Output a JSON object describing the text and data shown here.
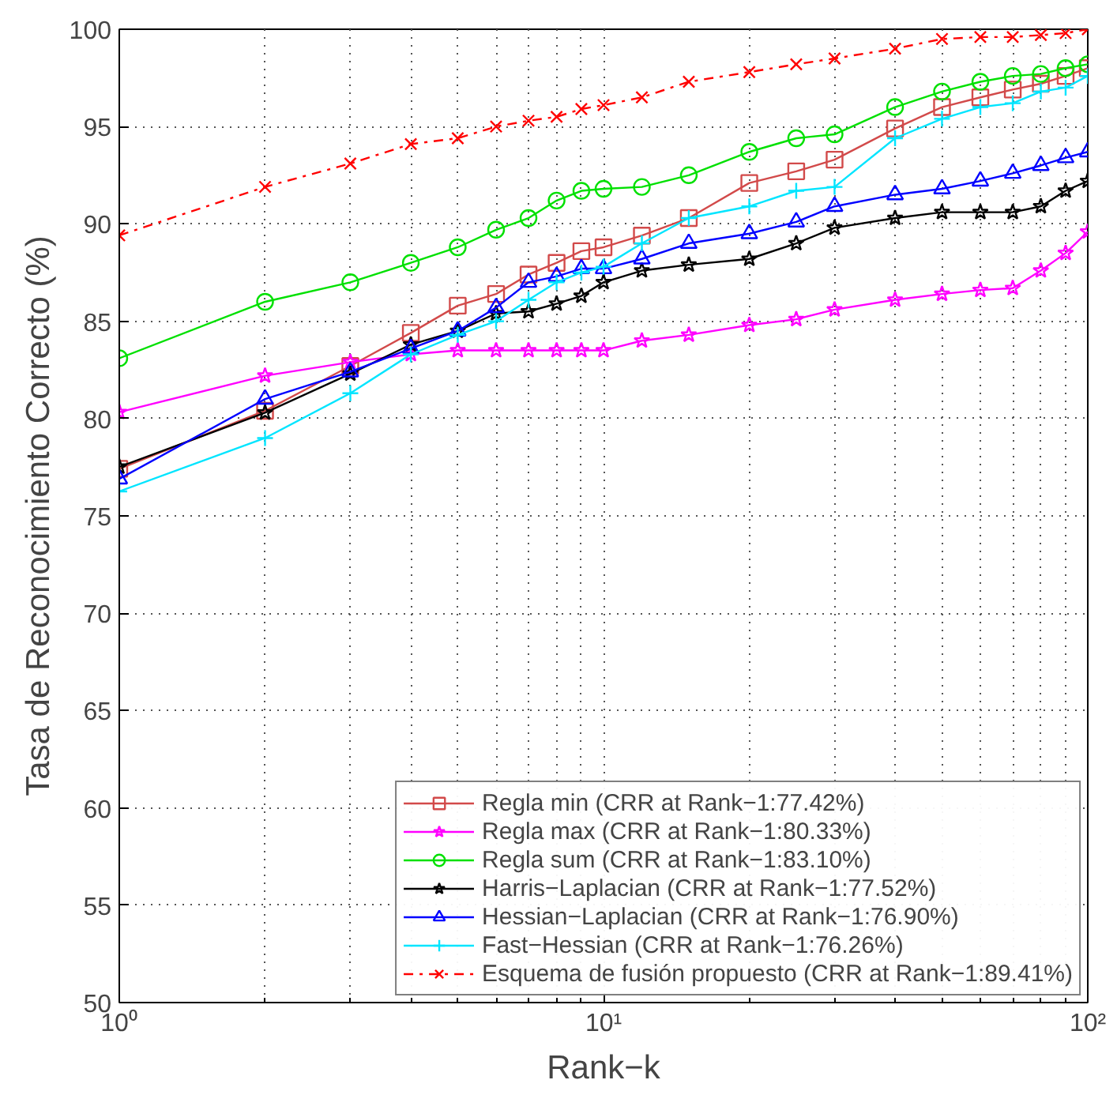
{
  "chart_data": {
    "type": "line",
    "xlabel": "Rank−k",
    "ylabel": "Tasa de Reconocimiento Correcto (%)",
    "log": "x",
    "x": [
      1,
      2,
      3,
      4,
      5,
      6,
      7,
      8,
      9,
      10,
      12,
      15,
      20,
      25,
      30,
      40,
      50,
      60,
      70,
      80,
      90,
      100
    ],
    "xlim": [
      1,
      100
    ],
    "xticks": [
      {
        "value": 1,
        "label": "10⁰"
      },
      {
        "value": 10,
        "label": "10¹"
      },
      {
        "value": 100,
        "label": "10²"
      }
    ],
    "ylim": [
      50,
      100
    ],
    "yticks": [
      50,
      55,
      60,
      65,
      70,
      75,
      80,
      85,
      90,
      95,
      100
    ],
    "grid": true,
    "legend": "bottom right",
    "series": [
      {
        "name": "Regla min (CRR at Rank−1:77.42%)",
        "color": "#d24a4a",
        "marker": "square",
        "line_style": "solid",
        "values": [
          77.42,
          80.4,
          82.7,
          84.4,
          85.8,
          86.4,
          87.4,
          88.0,
          88.6,
          88.8,
          89.4,
          90.3,
          92.1,
          92.7,
          93.3,
          94.9,
          96.0,
          96.5,
          96.9,
          97.2,
          97.6,
          98.0
        ]
      },
      {
        "name": "Regla max (CRR at Rank−1:80.33%)",
        "color": "#ff00ff",
        "marker": "star",
        "line_style": "solid",
        "values": [
          80.33,
          82.2,
          82.9,
          83.3,
          83.5,
          83.5,
          83.5,
          83.5,
          83.5,
          83.5,
          84.0,
          84.3,
          84.8,
          85.1,
          85.6,
          86.1,
          86.4,
          86.6,
          86.7,
          87.6,
          88.5,
          89.6
        ]
      },
      {
        "name": "Regla sum (CRR at Rank−1:83.10%)",
        "color": "#00e000",
        "marker": "circle",
        "line_style": "solid",
        "values": [
          83.1,
          86.0,
          87.0,
          88.0,
          88.8,
          89.7,
          90.3,
          91.2,
          91.7,
          91.8,
          91.9,
          92.5,
          93.7,
          94.4,
          94.6,
          96.0,
          96.8,
          97.3,
          97.6,
          97.7,
          98.0,
          98.2
        ]
      },
      {
        "name": "Harris−Laplacian (CRR at Rank−1:77.52%)",
        "color": "#000000",
        "marker": "star",
        "line_style": "solid",
        "values": [
          77.52,
          80.3,
          82.3,
          83.8,
          84.5,
          85.4,
          85.5,
          85.9,
          86.3,
          87.0,
          87.6,
          87.9,
          88.2,
          89.0,
          89.8,
          90.3,
          90.6,
          90.6,
          90.6,
          90.9,
          91.7,
          92.2
        ]
      },
      {
        "name": "Hessian−Laplacian (CRR at Rank−1:76.90%)",
        "color": "#0000ff",
        "marker": "triangle",
        "line_style": "solid",
        "values": [
          76.9,
          81.0,
          82.4,
          83.6,
          84.5,
          85.7,
          87.0,
          87.3,
          87.7,
          87.7,
          88.2,
          89.0,
          89.5,
          90.1,
          90.9,
          91.5,
          91.8,
          92.2,
          92.6,
          93.0,
          93.4,
          93.7
        ]
      },
      {
        "name": "Fast−Hessian (CRR at Rank−1:76.26%)",
        "color": "#00e5ff",
        "marker": "cross",
        "line_style": "solid",
        "values": [
          76.26,
          79.0,
          81.3,
          83.3,
          84.3,
          85.0,
          86.1,
          87.0,
          87.5,
          87.8,
          89.0,
          90.3,
          90.9,
          91.7,
          91.9,
          94.4,
          95.4,
          96.0,
          96.2,
          96.8,
          97.0,
          97.6
        ]
      },
      {
        "name": "Esquema de fusión propuesto (CRR at Rank−1:89.41%)",
        "color": "#ff0000",
        "marker": "x",
        "line_style": "dashdot",
        "values": [
          89.41,
          91.9,
          93.1,
          94.1,
          94.4,
          95.0,
          95.3,
          95.5,
          95.9,
          96.1,
          96.5,
          97.3,
          97.8,
          98.2,
          98.5,
          99.0,
          99.5,
          99.6,
          99.6,
          99.7,
          99.8,
          100
        ]
      }
    ]
  }
}
